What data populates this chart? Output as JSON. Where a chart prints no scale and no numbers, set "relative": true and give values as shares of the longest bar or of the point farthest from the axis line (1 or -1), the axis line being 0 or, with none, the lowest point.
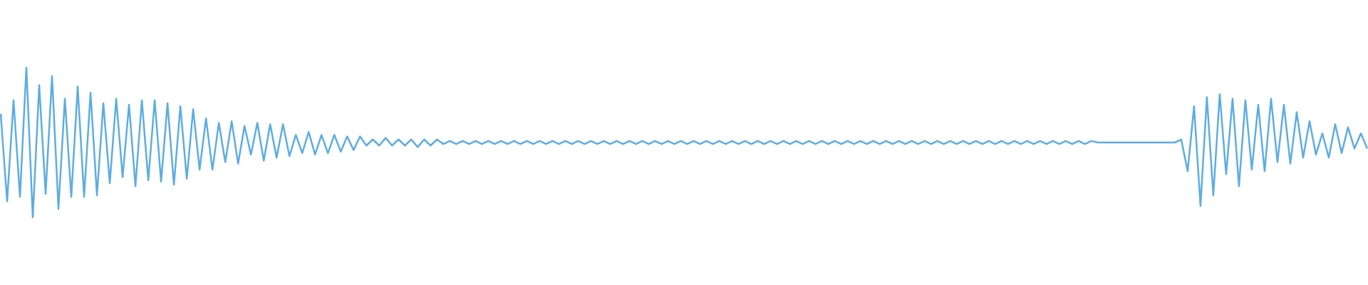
{
  "chart_data": {
    "type": "line",
    "relative": true,
    "marker": "none",
    "categories": [
      null,
      null,
      null,
      null,
      null,
      null,
      null,
      null,
      null,
      null,
      null,
      null,
      null,
      null,
      null,
      null,
      null,
      null,
      null,
      null,
      null,
      null,
      null,
      null,
      null,
      null,
      null,
      null,
      null,
      null,
      null,
      null,
      null,
      null,
      null,
      null,
      null,
      null,
      null,
      null,
      null,
      null,
      null,
      null,
      null,
      null,
      null,
      null,
      null,
      null,
      null,
      null,
      null,
      null,
      null,
      null,
      null,
      null,
      null,
      null,
      null,
      null,
      null,
      null,
      null,
      null,
      null,
      null,
      null,
      null,
      null,
      null,
      null,
      null,
      null,
      null,
      null,
      null,
      null,
      null,
      null,
      null,
      null,
      null,
      null,
      null,
      null,
      null,
      null,
      null,
      null,
      null,
      null,
      null,
      null,
      null,
      null,
      null,
      null,
      null,
      null,
      null,
      null,
      null,
      null,
      null,
      null,
      null,
      null,
      null,
      null,
      null,
      null,
      null,
      null,
      null,
      null,
      null,
      null,
      null,
      null,
      null,
      null,
      null,
      null,
      null,
      null,
      null,
      null,
      null,
      null,
      null,
      null,
      null,
      null,
      null,
      null,
      null,
      null,
      null,
      null,
      null,
      null,
      null,
      null,
      null,
      null,
      null,
      null,
      null,
      null,
      null,
      null,
      null,
      null,
      null,
      null,
      null,
      null,
      null,
      null,
      null,
      null,
      null,
      null,
      null,
      null,
      null,
      null,
      null,
      null,
      null,
      null,
      null,
      null,
      null,
      null,
      null,
      null,
      null,
      null,
      null,
      null,
      null,
      null,
      null,
      null,
      null,
      null,
      null,
      null,
      null,
      null,
      null,
      null,
      null,
      null,
      null,
      null,
      null,
      null,
      null,
      null,
      null,
      null,
      null,
      null,
      null,
      null,
      null,
      null,
      null,
      null,
      null
    ],
    "series": [
      {
        "color": "#5dade2",
        "values": [
          0.69,
          0.11,
          0.78,
          0.14,
          1.0,
          0.0,
          0.88,
          0.16,
          0.94,
          0.06,
          0.79,
          0.14,
          0.87,
          0.14,
          0.83,
          0.15,
          0.76,
          0.23,
          0.79,
          0.27,
          0.75,
          0.21,
          0.78,
          0.25,
          0.78,
          0.24,
          0.76,
          0.22,
          0.74,
          0.26,
          0.72,
          0.32,
          0.66,
          0.32,
          0.63,
          0.37,
          0.64,
          0.36,
          0.61,
          0.42,
          0.63,
          0.38,
          0.62,
          0.4,
          0.62,
          0.41,
          0.55,
          0.43,
          0.57,
          0.42,
          0.55,
          0.43,
          0.55,
          0.44,
          0.54,
          0.45,
          0.54,
          0.48,
          0.52,
          0.48,
          0.53,
          0.48,
          0.52,
          0.48,
          0.52,
          0.47,
          0.52,
          0.48,
          0.52,
          0.49,
          0.51,
          0.49,
          0.51,
          0.49,
          0.51,
          0.49,
          0.51,
          0.49,
          0.51,
          0.49,
          0.51,
          0.49,
          0.51,
          0.49,
          0.51,
          0.49,
          0.51,
          0.49,
          0.51,
          0.49,
          0.51,
          0.49,
          0.51,
          0.49,
          0.51,
          0.49,
          0.51,
          0.49,
          0.51,
          0.49,
          0.51,
          0.49,
          0.51,
          0.49,
          0.51,
          0.49,
          0.51,
          0.49,
          0.51,
          0.49,
          0.51,
          0.49,
          0.51,
          0.49,
          0.51,
          0.49,
          0.51,
          0.49,
          0.51,
          0.49,
          0.51,
          0.49,
          0.51,
          0.49,
          0.51,
          0.49,
          0.51,
          0.49,
          0.51,
          0.49,
          0.51,
          0.49,
          0.51,
          0.49,
          0.51,
          0.49,
          0.51,
          0.49,
          0.51,
          0.49,
          0.51,
          0.49,
          0.51,
          0.49,
          0.51,
          0.49,
          0.51,
          0.49,
          0.51,
          0.49,
          0.51,
          0.49,
          0.51,
          0.49,
          0.51,
          0.49,
          0.51,
          0.49,
          0.51,
          0.49,
          0.51,
          0.49,
          0.51,
          0.49,
          0.51,
          0.49,
          0.51,
          0.49,
          0.51,
          0.49,
          0.51,
          0.5,
          0.5,
          0.5,
          0.5,
          0.5,
          0.5,
          0.5,
          0.5,
          0.5,
          0.5,
          0.5,
          0.5,
          0.5,
          0.52,
          0.31,
          0.74,
          0.08,
          0.8,
          0.15,
          0.82,
          0.29,
          0.79,
          0.21,
          0.78,
          0.32,
          0.75,
          0.31,
          0.79,
          0.37,
          0.75,
          0.36,
          0.7,
          0.4,
          0.64,
          0.42,
          0.56,
          0.4,
          0.62,
          0.43,
          0.6,
          0.46,
          0.56,
          0.46
        ]
      }
    ]
  }
}
